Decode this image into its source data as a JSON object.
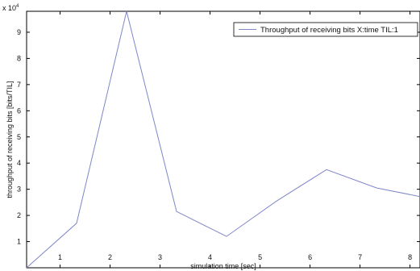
{
  "chart_data": {
    "type": "line",
    "xlabel": "simulation time [sec]",
    "ylabel": "throughput of receiving bits [bits/TIL]",
    "y_multiplier": "x 10",
    "y_multiplier_exponent": "4",
    "xlim": [
      0.33,
      8.2
    ],
    "ylim": [
      0,
      9.8
    ],
    "x_ticks": [
      "1",
      "2",
      "3",
      "4",
      "5",
      "6",
      "7",
      "8"
    ],
    "y_ticks": [
      "1",
      "2",
      "3",
      "4",
      "5",
      "6",
      "7",
      "8",
      "9"
    ],
    "grid": false,
    "legend_position": "top-right",
    "line_color": "#7f86c8",
    "series": [
      {
        "name": "Throughput of receiving bits X:time TIL:1",
        "x": [
          0.33,
          1.33,
          2.33,
          3.33,
          4.33,
          5.33,
          6.33,
          7.33,
          8.2
        ],
        "y": [
          0.0,
          1.7,
          9.8,
          2.15,
          1.2,
          2.55,
          3.75,
          3.05,
          2.72
        ]
      }
    ]
  }
}
